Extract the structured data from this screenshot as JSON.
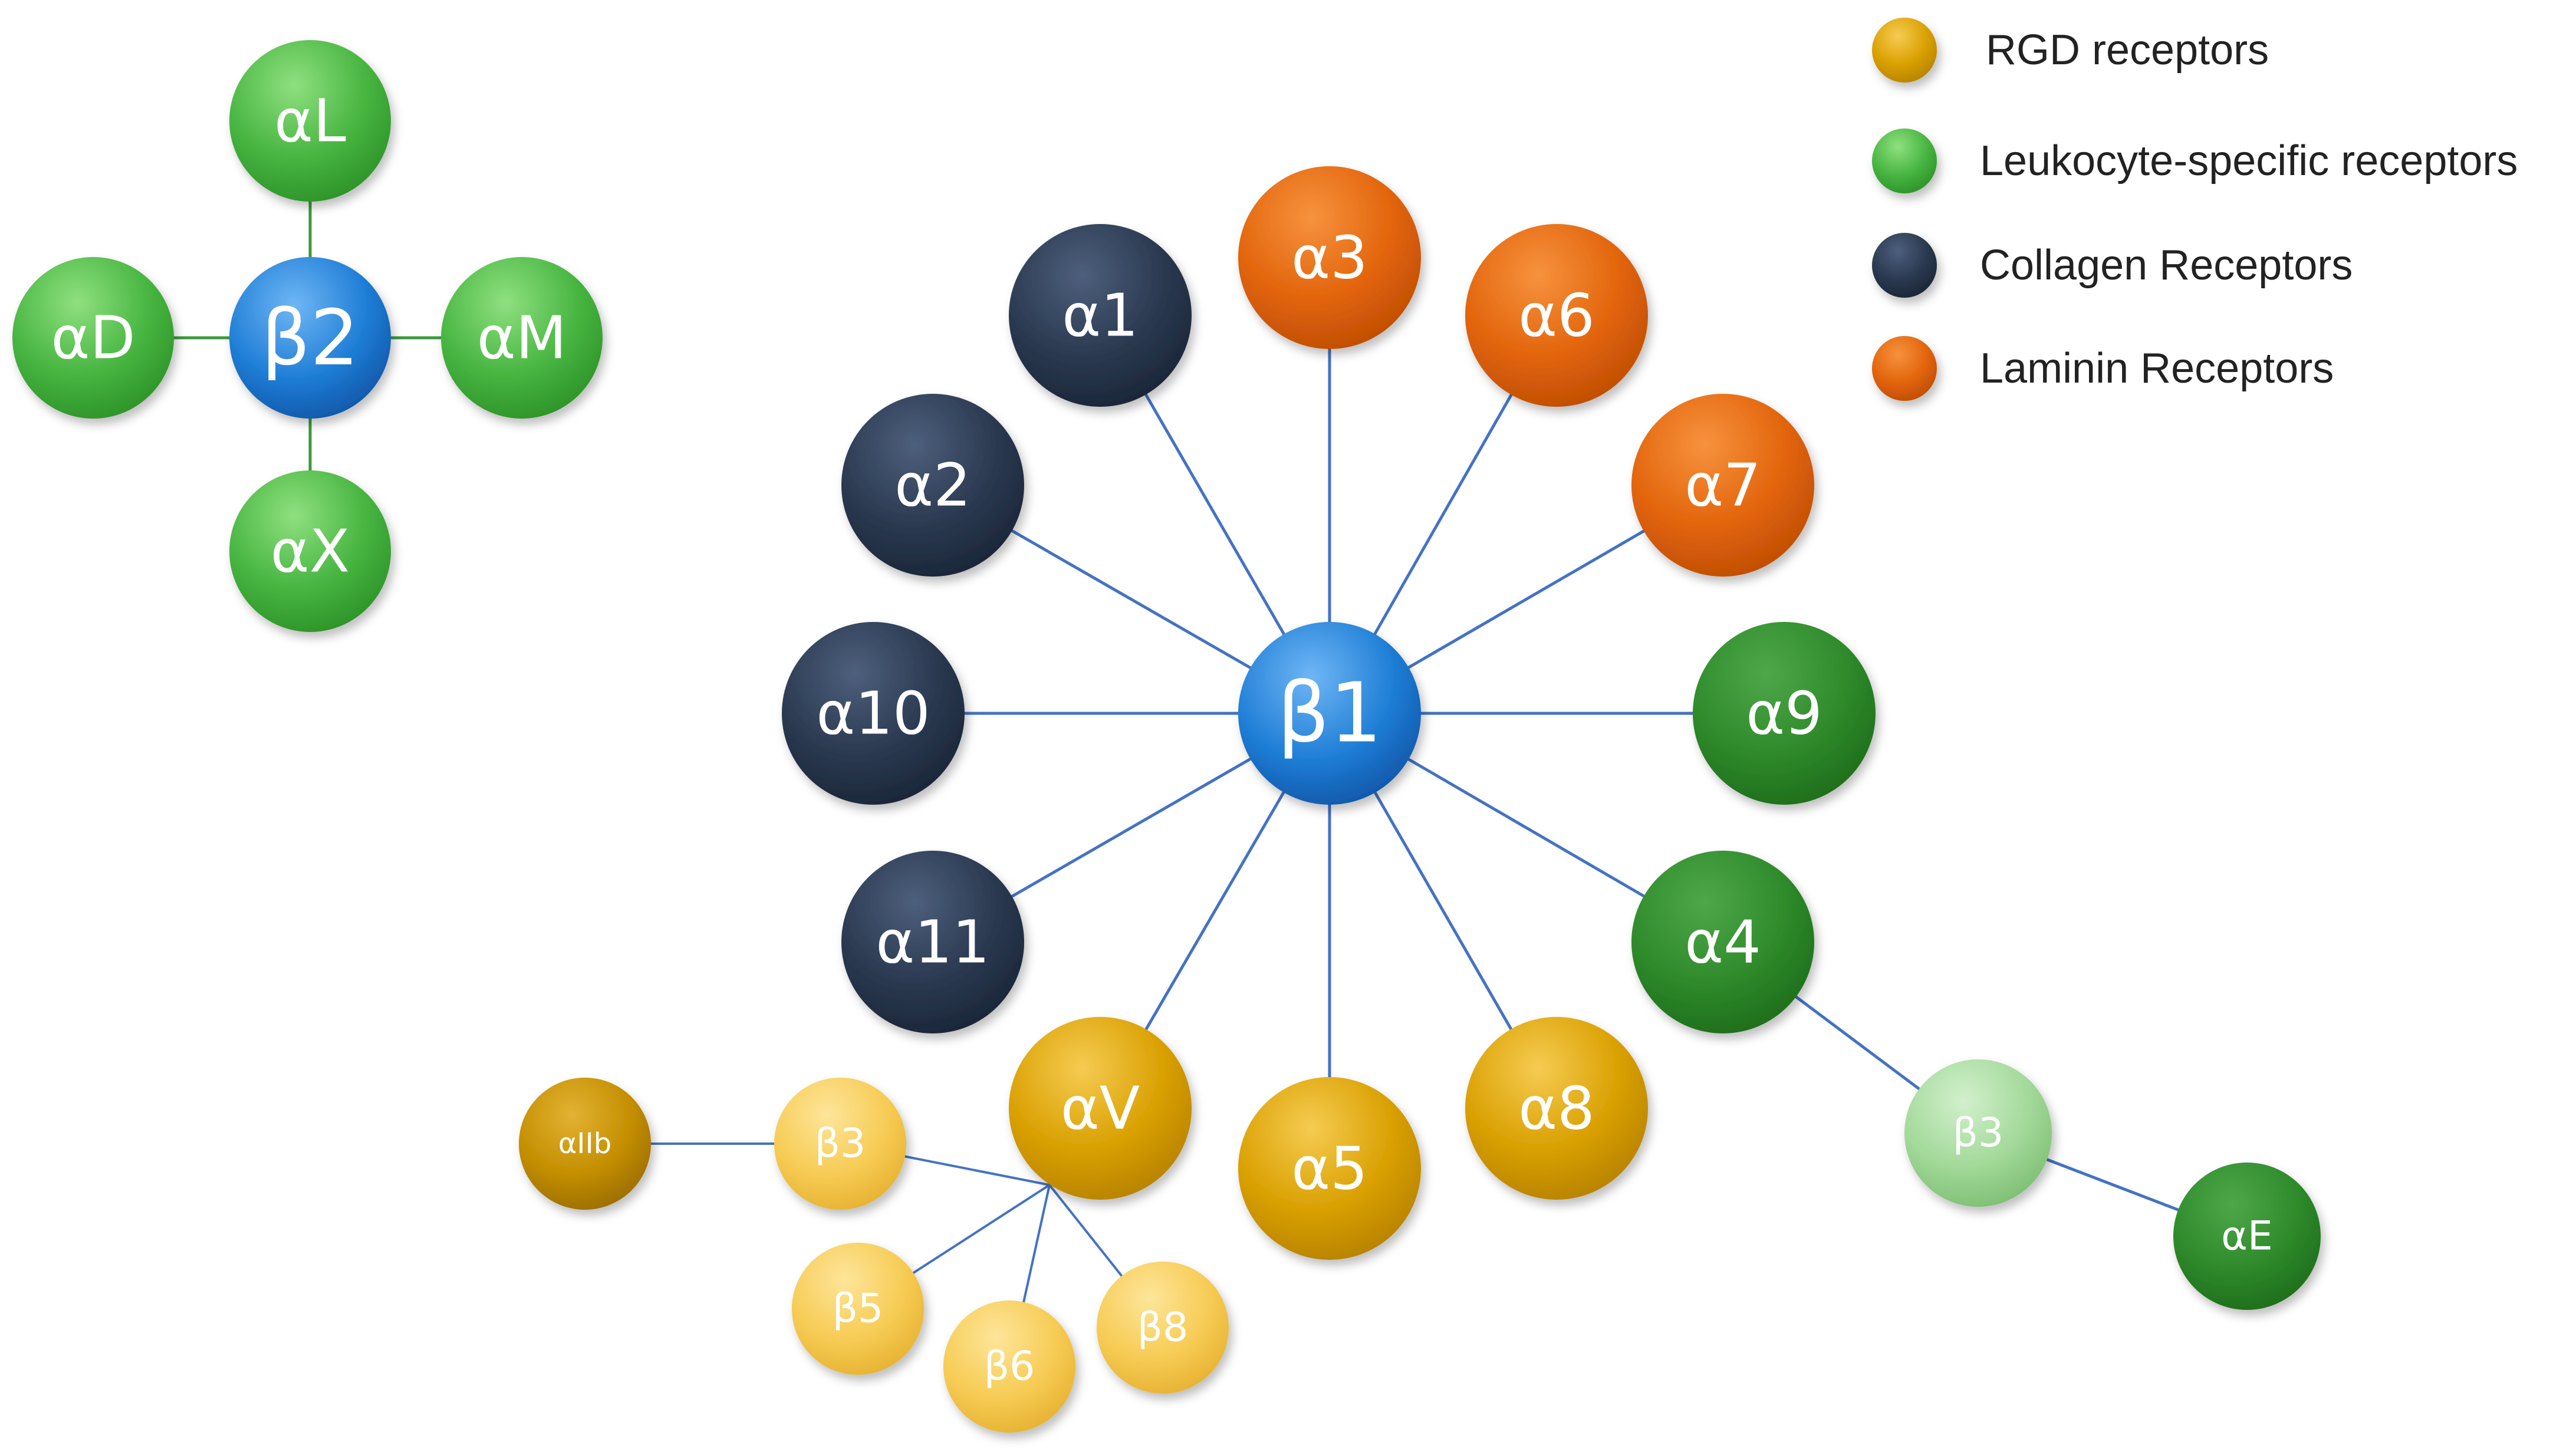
{
  "colors": {
    "rgd": "#d9a000",
    "rgd_light": "#f5c640",
    "leukocyte": "#4cb845",
    "leukocyte_dark": "#2f8a2b",
    "leukocyte_light": "#9ed894",
    "collagen": "#2a3950",
    "laminin": "#e2640b",
    "beta": "#1f7ed6",
    "line_blue": "#4472c4",
    "line_green": "#3a9a3a"
  },
  "legend": [
    {
      "label": "RGD receptors",
      "color_key": "rgd"
    },
    {
      "label": "Leukocyte-specific receptors",
      "color_key": "leukocyte"
    },
    {
      "label": "Collagen Receptors",
      "color_key": "collagen"
    },
    {
      "label": "Laminin Receptors",
      "color_key": "laminin"
    }
  ],
  "nodes": {
    "b2": "β2",
    "aL": "αL",
    "aD": "αD",
    "aM": "αM",
    "aX": "αX",
    "b1": "β1",
    "a1": "α1",
    "a2": "α2",
    "a3": "α3",
    "a4": "α4",
    "a5": "α5",
    "a6": "α6",
    "a7": "α7",
    "a8": "α8",
    "a9": "α9",
    "a10": "α10",
    "a11": "α11",
    "aV": "αV",
    "aIIb": "αIIb",
    "b3": "β3",
    "b5": "β5",
    "b6": "β6",
    "b8": "β8",
    "b3g": "β3",
    "aE": "αE"
  }
}
